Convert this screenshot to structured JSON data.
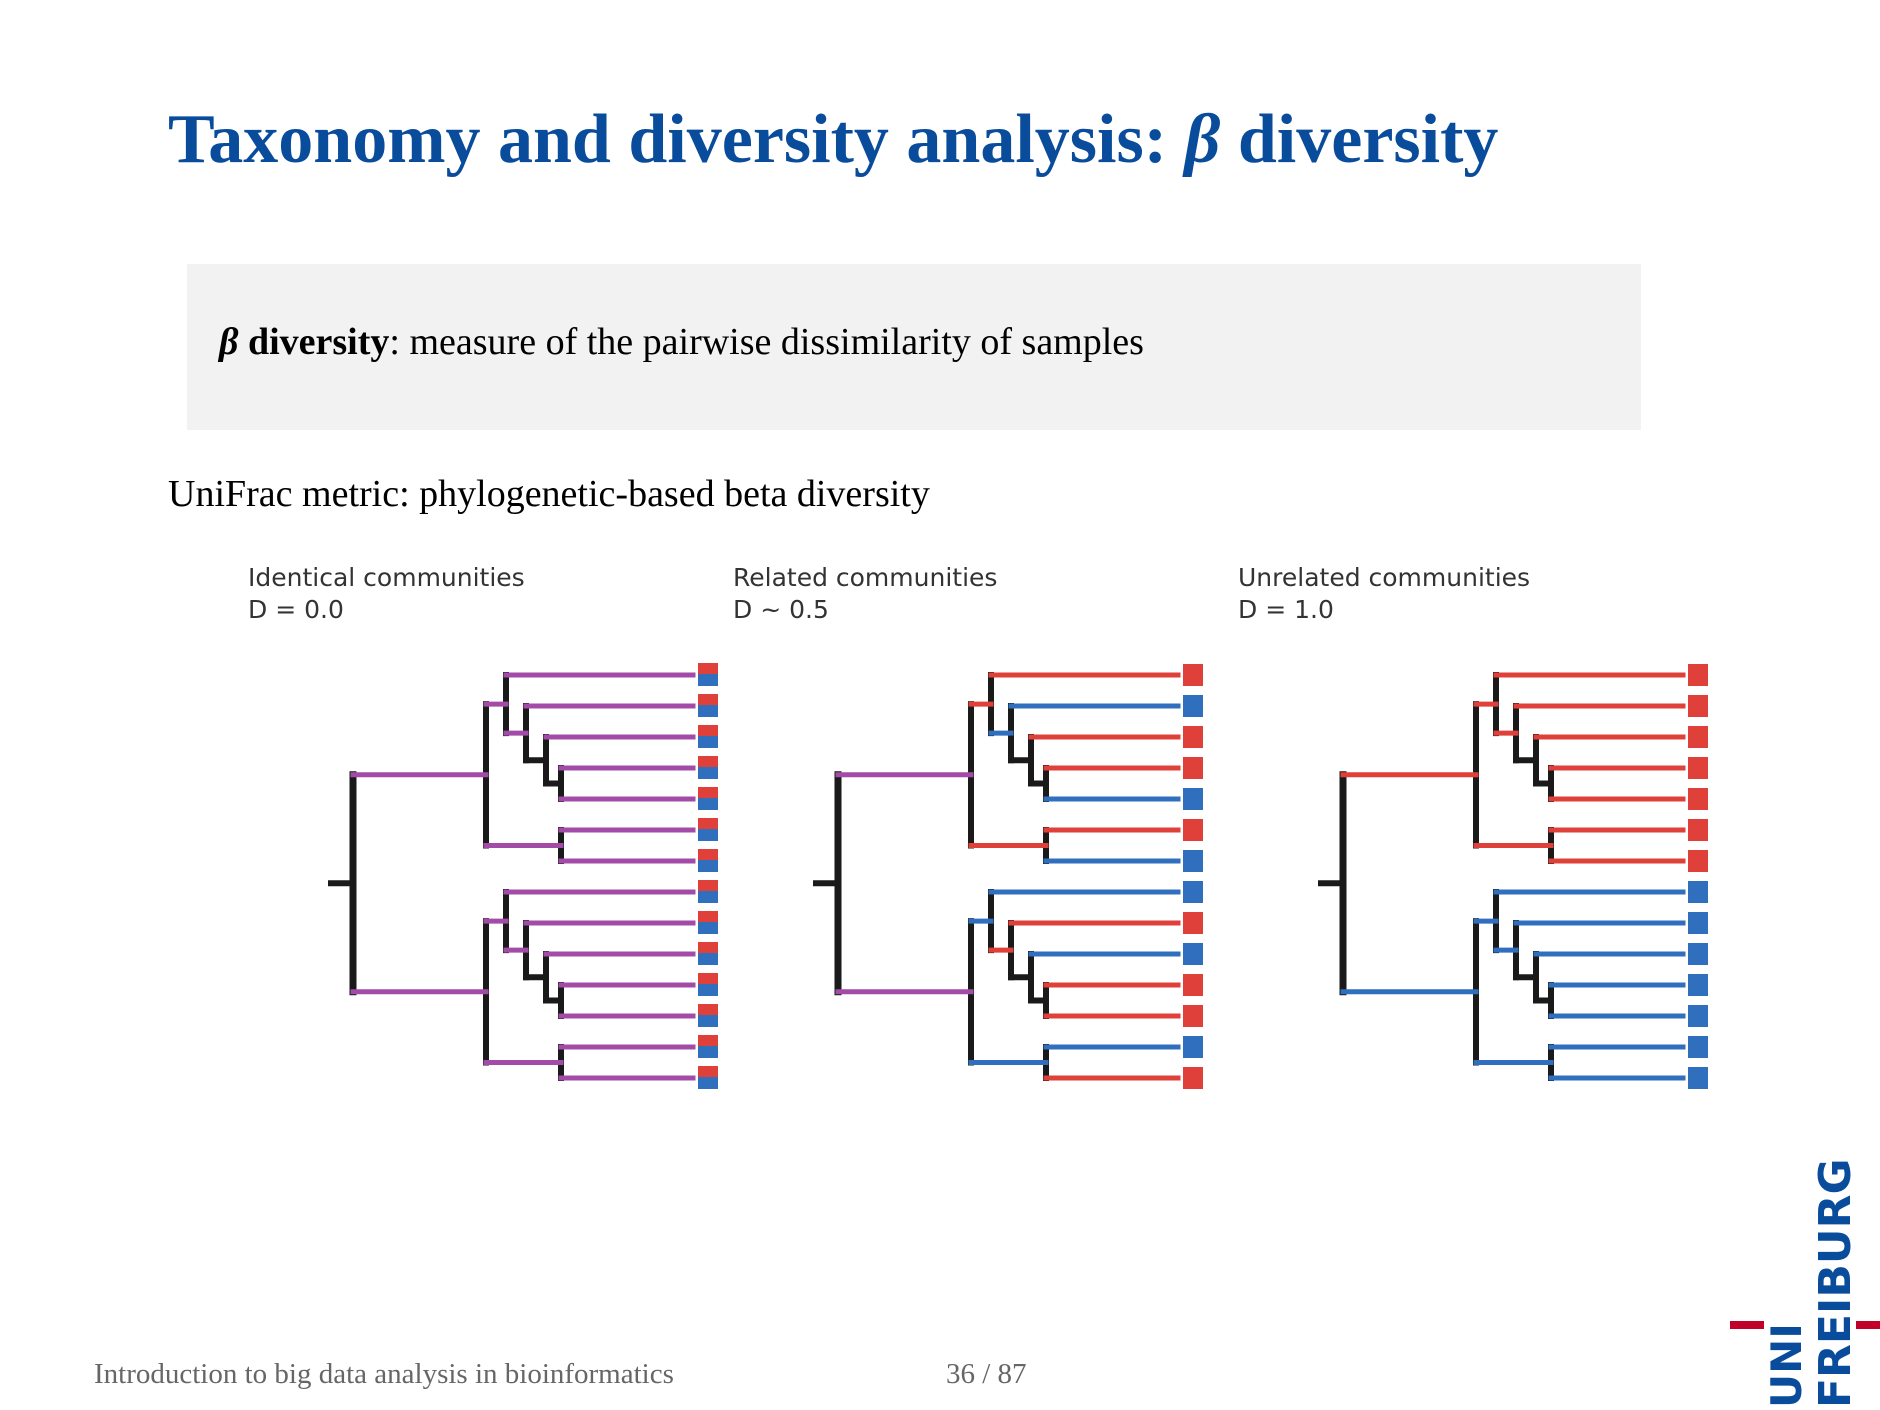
{
  "slide": {
    "title_main": "Taxonomy and diversity analysis: ",
    "title_greek": "β",
    "title_end": " diversity",
    "definition": {
      "greek": "β",
      "term": "diversity",
      "text": ": measure of the pairwise dissimilarity of samples"
    },
    "subtitle": "UniFrac metric: phylogenetic-based beta diversity",
    "panels": [
      {
        "label": "Identical communities",
        "d_value": "D = 0.0"
      },
      {
        "label": "Related communities",
        "d_value": "D ~ 0.5"
      },
      {
        "label": "Unrelated communities",
        "d_value": "D = 1.0"
      }
    ],
    "footer_left": "Introduction to big data analysis in bioinformatics",
    "page": "36 / 87"
  },
  "logo": {
    "uni": "UNI",
    "freiburg": "FREIBURG"
  },
  "colors": {
    "title": "#0a4c9c",
    "red": "#e0403a",
    "blue": "#2f6fbe",
    "purple": "#a24ca8",
    "branch": "#1a1a1a",
    "box": "#f2f2f2"
  },
  "tree_colors": {
    "panel1": {
      "leaves": [
        "both",
        "both",
        "both",
        "both",
        "both",
        "both",
        "both",
        "both",
        "both",
        "both",
        "both",
        "both",
        "both",
        "both"
      ],
      "top": "purple",
      "bottom": "purple"
    },
    "panel2": {
      "leaves": [
        "red",
        "blue",
        "red",
        "red",
        "blue",
        "red",
        "blue",
        "blue",
        "red",
        "blue",
        "red",
        "red",
        "blue",
        "red"
      ],
      "top": "purple",
      "bottom": "purple"
    },
    "panel3": {
      "leaves": [
        "red",
        "red",
        "red",
        "red",
        "red",
        "red",
        "red",
        "blue",
        "blue",
        "blue",
        "blue",
        "blue",
        "blue",
        "blue"
      ],
      "top": "red",
      "bottom": "blue"
    }
  }
}
